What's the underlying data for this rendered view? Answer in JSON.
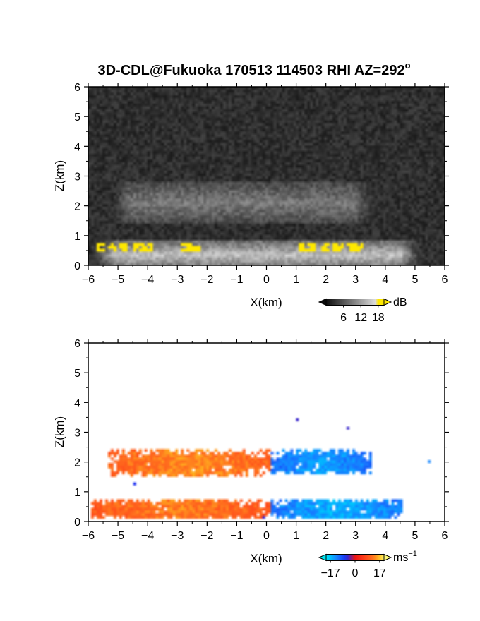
{
  "title": {
    "main": "3D-CDL@Fukuoka 170513 114503 RHI AZ=292",
    "degree": "o"
  },
  "chart_data": [
    {
      "type": "heatmap",
      "quantity": "reflectivity",
      "xlabel": "X(km)",
      "ylabel": "Z(km)",
      "xlim": [
        -6,
        6
      ],
      "ylim": [
        0,
        6
      ],
      "x_ticks": [
        "−6",
        "−5",
        "−4",
        "−3",
        "−2",
        "−1",
        "0",
        "1",
        "2",
        "3",
        "4",
        "5",
        "6"
      ],
      "y_ticks": [
        "0",
        "1",
        "2",
        "3",
        "4",
        "5",
        "6"
      ],
      "colorbar": {
        "unit": "dB",
        "ticks": [
          6,
          12,
          18
        ],
        "tick_labels": [
          "6",
          "12",
          "18"
        ],
        "range": [
          0,
          20
        ]
      },
      "features": [
        {
          "kind": "noise-background",
          "x": [
            -6,
            6
          ],
          "z": [
            0,
            6
          ],
          "level_db": 3
        },
        {
          "kind": "layer",
          "x": [
            -5.4,
            3.8
          ],
          "z": [
            1.4,
            2.8
          ],
          "center_z": 2.1,
          "level_db": 9
        },
        {
          "kind": "layer",
          "x": [
            -5.9,
            5.3
          ],
          "z": [
            0,
            0.85
          ],
          "center_z": 0.35,
          "level_db": 15
        },
        {
          "kind": "peak",
          "x": [
            -5.0,
            3.2
          ],
          "z": [
            0.5,
            0.78
          ],
          "level_db": 19,
          "clusters_x": [
            -5.6,
            -5.2,
            -4.8,
            -4.3,
            -4.0,
            -2.7,
            -2.4,
            1.2,
            1.5,
            2.0,
            2.4,
            2.9,
            3.1
          ]
        }
      ]
    },
    {
      "type": "heatmap",
      "quantity": "doppler-velocity",
      "xlabel": "X(km)",
      "ylabel": "Z(km)",
      "xlim": [
        -6,
        6
      ],
      "ylim": [
        0,
        6
      ],
      "x_ticks": [
        "−6",
        "−5",
        "−4",
        "−3",
        "−2",
        "−1",
        "0",
        "1",
        "2",
        "3",
        "4",
        "5",
        "6"
      ],
      "y_ticks": [
        "0",
        "1",
        "2",
        "3",
        "4",
        "5",
        "6"
      ],
      "colorbar": {
        "unit": "ms",
        "unit_sup": "−1",
        "ticks": [
          -17,
          0,
          17
        ],
        "tick_labels": [
          "−17",
          "0",
          "17"
        ],
        "range": [
          -20,
          20
        ]
      },
      "regions": [
        {
          "x": [
            -5.3,
            0.1
          ],
          "z": [
            1.5,
            2.4
          ],
          "velocity": 14
        },
        {
          "x": [
            0.1,
            3.5
          ],
          "z": [
            1.55,
            2.4
          ],
          "velocity": -15
        },
        {
          "x": [
            -5.9,
            0.1
          ],
          "z": [
            0.05,
            0.75
          ],
          "velocity": 13
        },
        {
          "x": [
            0.1,
            4.6
          ],
          "z": [
            0.05,
            0.75
          ],
          "velocity": -16
        }
      ],
      "isolated_points": [
        {
          "x": 1.0,
          "z": 3.38,
          "velocity": -5
        },
        {
          "x": 2.75,
          "z": 3.12,
          "velocity": -5
        },
        {
          "x": 5.48,
          "z": 2.0,
          "velocity": -13
        },
        {
          "x": -4.45,
          "z": 1.22,
          "velocity": -6
        },
        {
          "x": -0.05,
          "z": 0.1,
          "velocity": -5
        }
      ]
    }
  ]
}
